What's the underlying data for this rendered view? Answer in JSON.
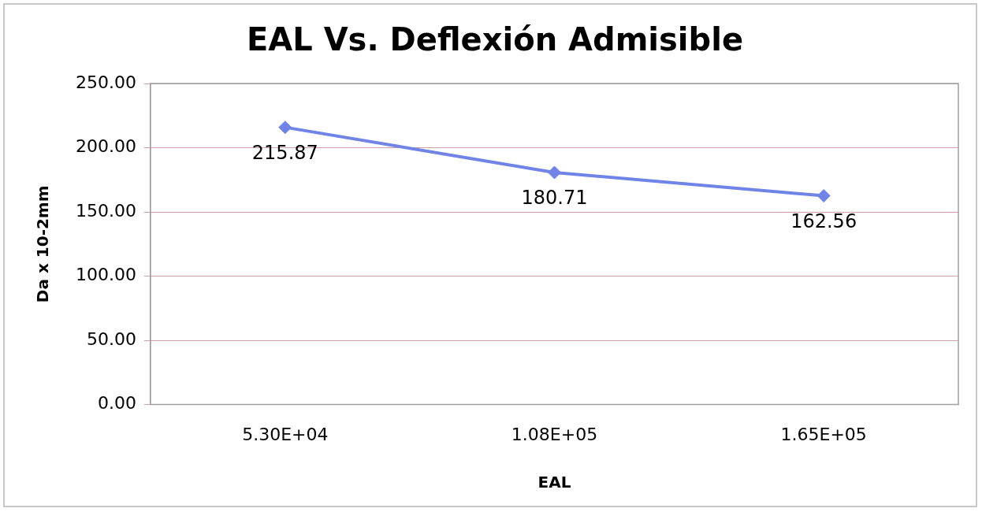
{
  "chart_data": {
    "type": "line",
    "title": "EAL Vs. Deflexión Admisible",
    "xlabel": "EAL",
    "ylabel": "Da x 10-2mm",
    "categories": [
      "5.30E+04",
      "1.08E+05",
      "1.65E+05"
    ],
    "series": [
      {
        "color": "#6f84e6",
        "values": [
          215.87,
          180.71,
          162.56
        ]
      }
    ],
    "ylim": [
      0,
      250
    ],
    "yticks": [
      {
        "value": 0,
        "label": "0.00"
      },
      {
        "value": 50,
        "label": "50.00"
      },
      {
        "value": 100,
        "label": "100.00"
      },
      {
        "value": 150,
        "label": "150.00"
      },
      {
        "value": 200,
        "label": "200.00"
      },
      {
        "value": 250,
        "label": "250.00"
      }
    ],
    "grid": "y",
    "legend": false,
    "marker": "diamond",
    "line_style": "solid",
    "data_labels": true
  }
}
